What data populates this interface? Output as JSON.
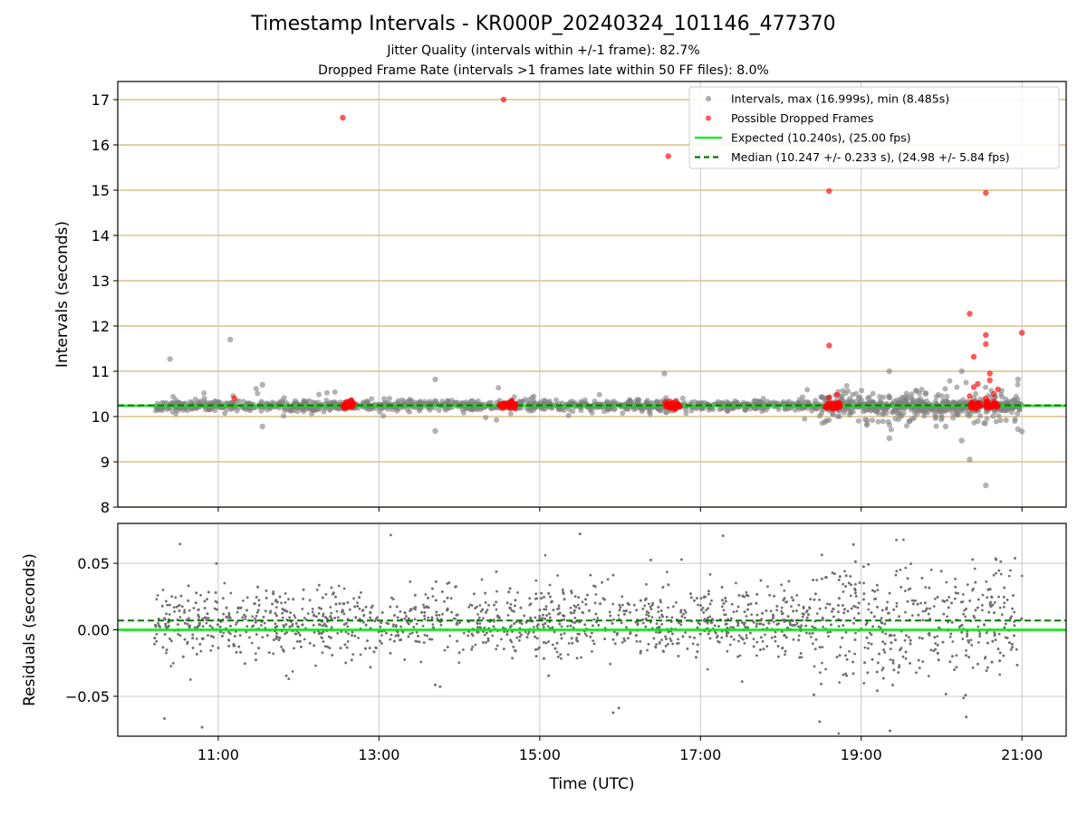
{
  "chart_data": [
    {
      "type": "scatter",
      "title": "Timestamp Intervals - KR000P_20240324_101146_477370",
      "subtitle": [
        "Jitter Quality (intervals within +/-1 frame): 82.7%",
        "Dropped Frame Rate (intervals >1 frames late within 50 FF files): 8.0%"
      ],
      "xlabel": "",
      "ylabel": "Intervals (seconds)",
      "x_range_hours": [
        9.75,
        21.55
      ],
      "ylim": [
        8,
        17.4
      ],
      "yticks": [
        8,
        9,
        10,
        11,
        12,
        13,
        14,
        15,
        16,
        17
      ],
      "grid": {
        "horizontal": true,
        "horizontal_color": "#d4b46a",
        "vertical": true
      },
      "legend_position": "top-right",
      "series": [
        {
          "name": "Intervals, max (16.999s), min (8.485s)",
          "color": "#808080",
          "points": [
            [
              10.4,
              11.27
            ],
            [
              11.15,
              11.7
            ],
            [
              11.55,
              10.7
            ],
            [
              11.55,
              9.78
            ],
            [
              13.7,
              10.82
            ],
            [
              13.7,
              9.68
            ],
            [
              16.55,
              10.95
            ],
            [
              19.35,
              11.0
            ],
            [
              19.35,
              9.52
            ],
            [
              20.05,
              9.78
            ],
            [
              20.25,
              11.0
            ],
            [
              20.25,
              9.47
            ],
            [
              20.35,
              9.05
            ],
            [
              20.55,
              8.48
            ],
            [
              20.95,
              10.82
            ],
            [
              20.95,
              9.72
            ],
            [
              21.0,
              9.67
            ],
            [
              20.65,
              10.2
            ],
            [
              20.1,
              10.15
            ],
            [
              19.6,
              9.9
            ],
            [
              19.8,
              10.5
            ],
            [
              20.45,
              9.9
            ],
            [
              18.55,
              9.88
            ]
          ],
          "band": {
            "center": 10.24,
            "spread": 0.1,
            "x_from": 10.2,
            "x_to": 21.0
          }
        },
        {
          "name": "Possible Dropped Frames",
          "color": "#ff0000",
          "points": [
            [
              12.55,
              16.6
            ],
            [
              14.55,
              17.0
            ],
            [
              16.6,
              15.75
            ],
            [
              18.6,
              14.98
            ],
            [
              20.55,
              14.94
            ],
            [
              20.35,
              12.27
            ],
            [
              20.55,
              11.8
            ],
            [
              20.4,
              11.32
            ],
            [
              20.55,
              11.6
            ],
            [
              21.0,
              11.85
            ],
            [
              18.6,
              11.57
            ],
            [
              20.6,
              10.95
            ],
            [
              20.6,
              10.8
            ],
            [
              20.7,
              10.6
            ],
            [
              20.65,
              10.5
            ],
            [
              20.45,
              10.72
            ],
            [
              20.4,
              10.65
            ],
            [
              11.2,
              10.4
            ],
            [
              12.65,
              10.35
            ],
            [
              14.65,
              10.35
            ],
            [
              18.7,
              10.48
            ],
            [
              18.6,
              10.42
            ],
            [
              20.35,
              10.45
            ],
            [
              20.55,
              10.4
            ]
          ],
          "clusters": [
            [
              12.55,
              12.7
            ],
            [
              14.5,
              14.7
            ],
            [
              16.55,
              16.75
            ],
            [
              18.55,
              18.75
            ],
            [
              20.35,
              20.5
            ],
            [
              20.55,
              20.7
            ]
          ],
          "cluster_value": 10.25
        },
        {
          "name": "Expected (10.240s), (25.00 fps)",
          "type": "hline",
          "y": 10.24,
          "color": "#00ee00",
          "style": "solid"
        },
        {
          "name": "Median (10.247 +/- 0.233 s), (24.98 +/- 5.84 fps)",
          "type": "hline",
          "y": 10.247,
          "color": "#007700",
          "style": "dashed"
        }
      ]
    },
    {
      "type": "scatter",
      "xlabel": "Time (UTC)",
      "ylabel": "Residuals (seconds)",
      "x_range_hours": [
        9.75,
        21.55
      ],
      "xticks": [
        {
          "value": 11,
          "label": "11:00"
        },
        {
          "value": 13,
          "label": "13:00"
        },
        {
          "value": 15,
          "label": "15:00"
        },
        {
          "value": 17,
          "label": "17:00"
        },
        {
          "value": 19,
          "label": "19:00"
        },
        {
          "value": 21,
          "label": "21:00"
        }
      ],
      "ylim": [
        -0.08,
        0.08
      ],
      "yticks": [
        {
          "value": 0.05,
          "label": "0.05"
        },
        {
          "value": 0.0,
          "label": "0.00"
        },
        {
          "value": -0.05,
          "label": "−0.05"
        }
      ],
      "grid": {
        "horizontal": true,
        "vertical": true
      },
      "series": [
        {
          "type": "scatter",
          "color": "#707070",
          "center": 0.007,
          "spread": 0.018,
          "x_from": 10.2,
          "x_to": 21.0
        },
        {
          "type": "hline",
          "y": 0.0,
          "color": "#00ee00",
          "style": "solid"
        },
        {
          "type": "hline",
          "y": 0.007,
          "color": "#007700",
          "style": "dashed"
        }
      ]
    }
  ]
}
